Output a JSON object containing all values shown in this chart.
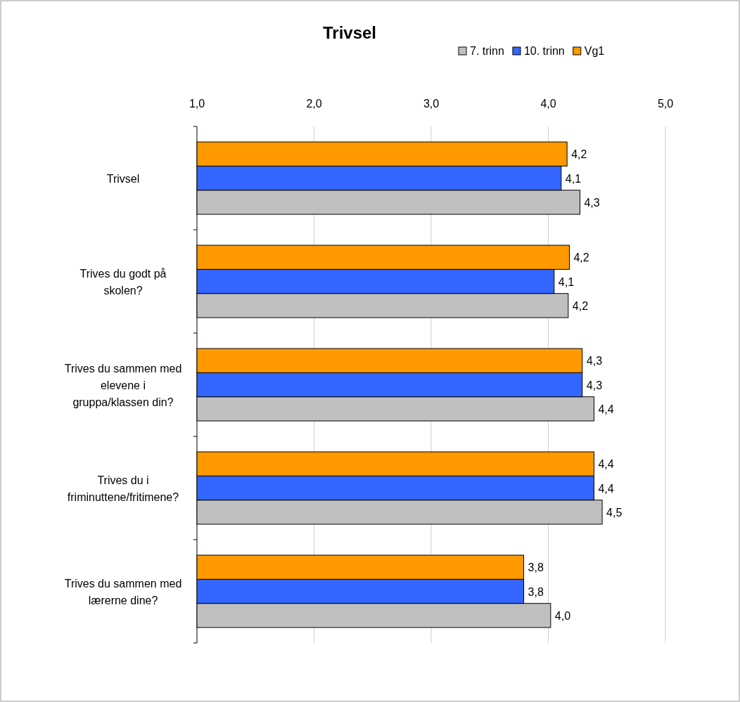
{
  "chart_data": {
    "type": "bar",
    "orientation": "horizontal",
    "title": "Trivsel",
    "categories": [
      "Trivsel",
      "Trives du godt på skolen?",
      "Trives du sammen med elevene i gruppa/klassen din?",
      "Trives du i friminuttene/fritimene?",
      "Trives du sammen med lærerne dine?"
    ],
    "series": [
      {
        "name": "7. trinn",
        "color": "#c0c0c0",
        "values": [
          4.27,
          4.17,
          4.39,
          4.46,
          4.02
        ],
        "value_labels": [
          "4,3",
          "4,2",
          "4,4",
          "4,5",
          "4,0"
        ]
      },
      {
        "name": "10. trinn",
        "color": "#3366ff",
        "values": [
          4.11,
          4.05,
          4.29,
          4.39,
          3.79
        ],
        "value_labels": [
          "4,1",
          "4,1",
          "4,3",
          "4,4",
          "3,8"
        ]
      },
      {
        "name": "Vg1",
        "color": "#ff9900",
        "values": [
          4.16,
          4.18,
          4.29,
          4.39,
          3.79
        ],
        "value_labels": [
          "4,2",
          "4,2",
          "4,3",
          "4,4",
          "3,8"
        ]
      }
    ],
    "xlim": [
      1,
      5
    ],
    "xticks": [
      {
        "value": 1,
        "label": "1,0"
      },
      {
        "value": 2,
        "label": "2,0"
      },
      {
        "value": 3,
        "label": "3,0"
      },
      {
        "value": 4,
        "label": "4,0"
      },
      {
        "value": 5,
        "label": "5,0"
      }
    ],
    "grid": "x",
    "legend": "top right"
  }
}
